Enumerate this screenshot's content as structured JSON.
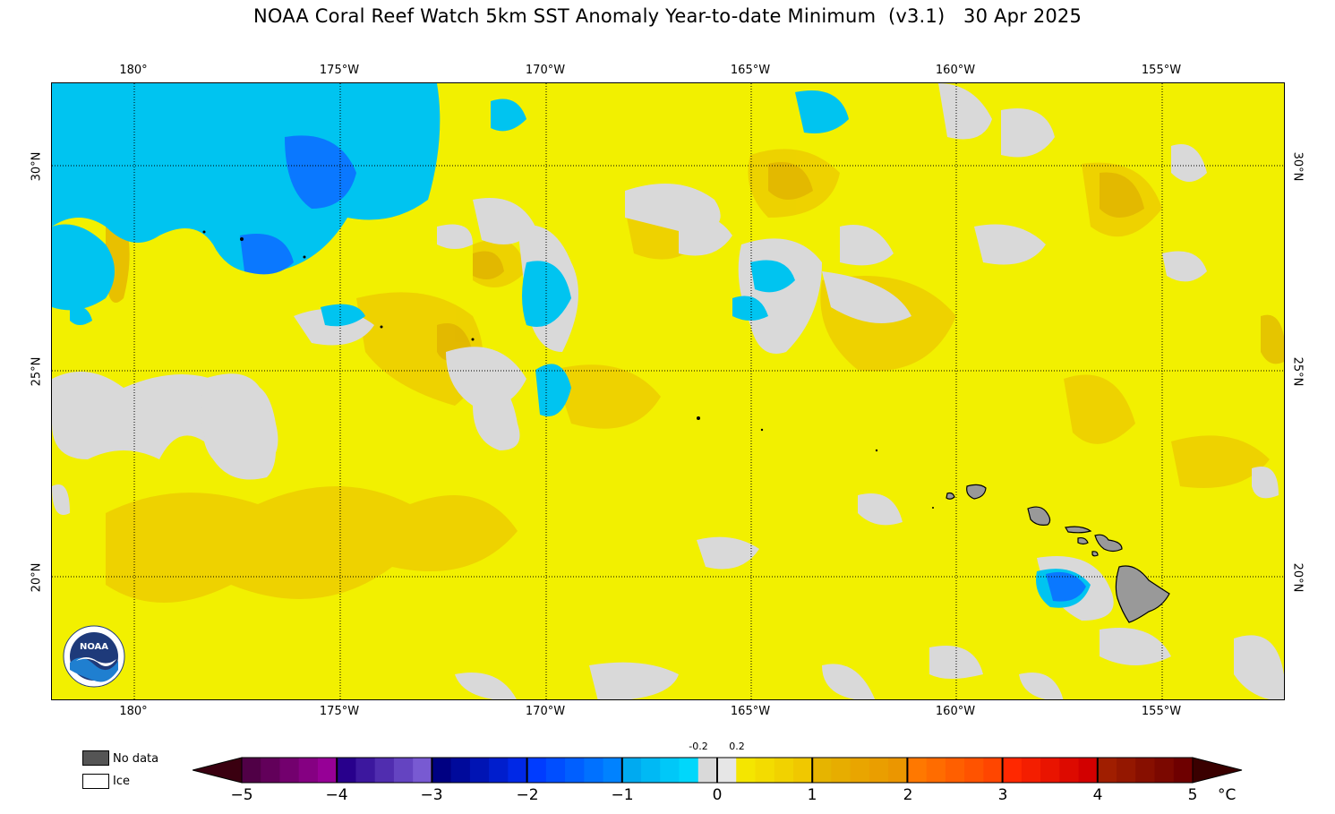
{
  "title": "NOAA Coral Reef Watch 5km SST Anomaly Year-to-date Minimum  (v3.1)   30 Apr 2025",
  "longitudes": [
    "180°",
    "175°W",
    "170°W",
    "165°W",
    "160°W",
    "155°W"
  ],
  "latitudes": [
    "30°N",
    "25°N",
    "20°N"
  ],
  "legend": {
    "nodata": "No data",
    "ice": "Ice",
    "nodata_color": "#555555",
    "ice_color": "#ffffff"
  },
  "colorbar": {
    "ticks": [
      "−5",
      "−4",
      "−3",
      "−2",
      "−1",
      "0",
      "1",
      "2",
      "3",
      "4",
      "5"
    ],
    "small_ticks": [
      "-0.2",
      "0.2"
    ],
    "unit": "°C",
    "range": [
      -5,
      5
    ]
  },
  "colors": {
    "land": "#999999",
    "nodata_gray": "#d9d9d9",
    "base_yellow": "#f2f000",
    "warm_yellow": "#f2cc00",
    "orange_yellow": "#e8b400",
    "cyan": "#00c8f0",
    "blue": "#0a6cff"
  },
  "logo_text": "NOAA"
}
